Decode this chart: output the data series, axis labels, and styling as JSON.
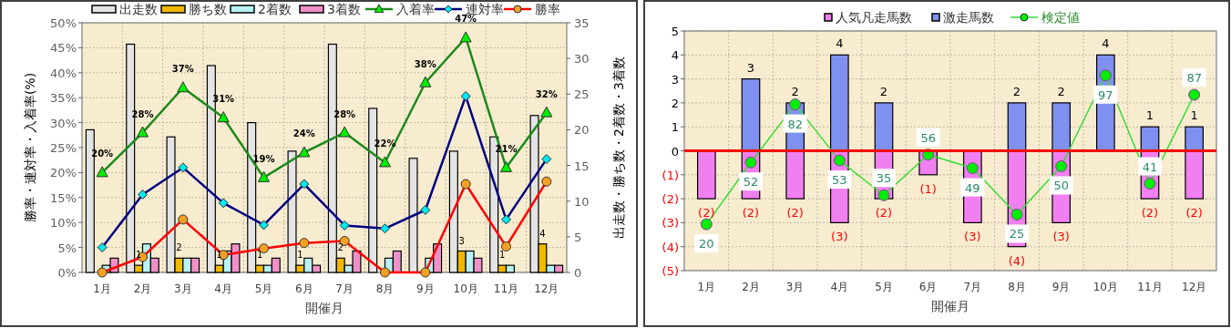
{
  "chart_data": [
    {
      "type": "bar",
      "categories": [
        "1月",
        "2月",
        "3月",
        "4月",
        "5月",
        "6月",
        "7月",
        "8月",
        "9月",
        "10月",
        "11月",
        "12月"
      ],
      "xlabel": "開催月",
      "ylabel": "勝率・連対率・入着率(%)",
      "y2label": "出走数・勝ち数・2着数・3着数",
      "ylim": [
        0,
        50
      ],
      "yticks": [
        {
          "value": 0,
          "label": "0%"
        },
        {
          "value": 5,
          "label": "5%"
        },
        {
          "value": 10,
          "label": "10%"
        },
        {
          "value": 15,
          "label": "15%"
        },
        {
          "value": 20,
          "label": "20%"
        },
        {
          "value": 25,
          "label": "25%"
        },
        {
          "value": 30,
          "label": "30%"
        },
        {
          "value": 35,
          "label": "35%"
        },
        {
          "value": 40,
          "label": "40%"
        },
        {
          "value": 45,
          "label": "45%"
        },
        {
          "value": 50,
          "label": "50%"
        }
      ],
      "y2lim": [
        0,
        35
      ],
      "y2ticks": [
        0,
        5,
        10,
        15,
        20,
        25,
        30,
        35
      ],
      "grid": true,
      "legend": "top",
      "series": [
        {
          "name": "出走数",
          "axis": "y2",
          "color": "#e4e4e4",
          "values": [
            20,
            32,
            19,
            29,
            21,
            17,
            32,
            23,
            16,
            17,
            19,
            22
          ]
        },
        {
          "name": "勝ち数",
          "axis": "y2",
          "color": "#f0b800",
          "values": [
            0,
            1,
            2,
            1,
            1,
            1,
            2,
            0,
            0,
            3,
            1,
            4
          ],
          "value_labels": [
            null,
            "1",
            "2",
            "1",
            "1",
            "1",
            "2",
            null,
            null,
            "3",
            "1",
            "4"
          ]
        },
        {
          "name": "2着数",
          "axis": "y2",
          "color": "#b8f2f2",
          "values": [
            1,
            4,
            2,
            3,
            1,
            2,
            1,
            2,
            2,
            3,
            1,
            1
          ]
        },
        {
          "name": "3着数",
          "axis": "y2",
          "color": "#f090c8",
          "values": [
            2,
            2,
            2,
            4,
            2,
            1,
            3,
            3,
            4,
            2,
            0,
            1
          ]
        },
        {
          "name": "入着率",
          "type": "line",
          "marker": "triangle",
          "color": "#1a8a1a",
          "values": [
            20,
            28,
            37,
            31,
            19,
            24,
            28,
            22,
            38,
            47,
            21,
            32
          ],
          "value_labels": [
            "20%",
            "28%",
            "37%",
            "31%",
            "19%",
            "24%",
            "28%",
            "22%",
            "38%",
            "47%",
            "21%",
            "32%"
          ]
        },
        {
          "name": "連対率",
          "type": "line",
          "marker": "diamond",
          "color": "#000080",
          "values": [
            5.0,
            15.6,
            21.0,
            13.9,
            9.5,
            17.7,
            9.4,
            8.8,
            12.5,
            35.3,
            10.6,
            22.7
          ]
        },
        {
          "name": "勝率",
          "type": "line",
          "marker": "circle",
          "color": "#ff0000",
          "values": [
            0,
            3.1,
            10.6,
            3.5,
            4.8,
            5.9,
            6.3,
            0,
            0,
            17.7,
            5.2,
            18.2
          ]
        }
      ]
    },
    {
      "type": "bar",
      "categories": [
        "1月",
        "2月",
        "3月",
        "4月",
        "5月",
        "6月",
        "7月",
        "8月",
        "9月",
        "10月",
        "11月",
        "12月"
      ],
      "xlabel": "開催月",
      "stacked": true,
      "ylim": [
        -5,
        5
      ],
      "yticks": [
        {
          "value": -5,
          "label": "(5)"
        },
        {
          "value": -4,
          "label": "(4)"
        },
        {
          "value": -3,
          "label": "(3)"
        },
        {
          "value": -2,
          "label": "(2)"
        },
        {
          "value": -1,
          "label": "(1)"
        },
        0,
        1,
        2,
        3,
        4,
        5
      ],
      "y2lim": [
        -4,
        120
      ],
      "grid": true,
      "legend": "top",
      "ref_lines": [
        {
          "axis": "y",
          "value": 0,
          "color": "#ff0000"
        }
      ],
      "series": [
        {
          "name": "人気凡走馬数",
          "color": "#f080f0",
          "values": [
            -2,
            -2,
            -2,
            -3,
            -2,
            -1,
            -3,
            -4,
            -3,
            null,
            -2,
            -2
          ],
          "value_labels": [
            "(2)",
            "(2)",
            "(2)",
            "(3)",
            "(2)",
            "(1)",
            "(3)",
            "(4)",
            "(3)",
            null,
            "(2)",
            "(2)"
          ]
        },
        {
          "name": "激走馬数",
          "color": "#8090f0",
          "values": [
            null,
            3,
            2,
            4,
            2,
            null,
            null,
            2,
            2,
            4,
            1,
            1
          ],
          "value_labels": [
            null,
            "3",
            "2",
            "4",
            "2",
            null,
            null,
            "2",
            "2",
            "4",
            "1",
            "1"
          ]
        },
        {
          "name": "検定値",
          "type": "line",
          "axis": "y2",
          "marker": "circle",
          "color": "#33dd33",
          "values": [
            20,
            52,
            82,
            53,
            35,
            56,
            49,
            25,
            50,
            97,
            41,
            87
          ],
          "value_labels": [
            "20",
            "52",
            "82",
            "53",
            "35",
            "56",
            "49",
            "25",
            "50",
            "97",
            "41",
            "87"
          ]
        }
      ]
    }
  ]
}
